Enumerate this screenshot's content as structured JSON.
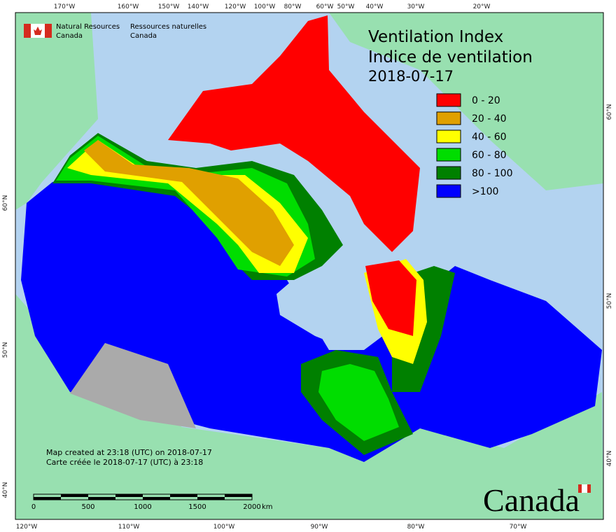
{
  "title": {
    "line1": "Ventilation Index",
    "line2": "Indice de ventilation",
    "date": "2018-07-17"
  },
  "agency": {
    "en": [
      "Natural Resources",
      "Canada"
    ],
    "fr": [
      "Ressources naturelles",
      "Canada"
    ]
  },
  "legend": [
    {
      "label": "0 - 20",
      "color": "#ff0000"
    },
    {
      "label": "20 - 40",
      "color": "#e0a000"
    },
    {
      "label": "40 - 60",
      "color": "#ffff00"
    },
    {
      "label": "60 - 80",
      "color": "#00dd00"
    },
    {
      "label": "80 - 100",
      "color": "#008000"
    },
    {
      "label": ">100",
      "color": "#0000ff"
    }
  ],
  "graticule": {
    "top": [
      "170°W",
      "160°W",
      "150°W",
      "140°W",
      "120°W",
      "100°W",
      "80°W",
      "60°W",
      "50°W",
      "40°W",
      "30°W",
      "20°W"
    ],
    "bottom": [
      "120°W",
      "110°W",
      "100°W",
      "90°W",
      "80°W",
      "70°W"
    ],
    "left": [
      "60°N",
      "50°N",
      "40°N"
    ],
    "right": [
      "60°N",
      "50°N",
      "40°N"
    ]
  },
  "credits": [
    "Map created at 23:18 (UTC) on 2018-07-17",
    "Carte créée le 2018-07-17 (UTC) à 23:18"
  ],
  "scale": {
    "ticks": [
      "0",
      "500",
      "1000",
      "1500",
      "2000"
    ],
    "unit": "km"
  },
  "wordmark": "Canada"
}
